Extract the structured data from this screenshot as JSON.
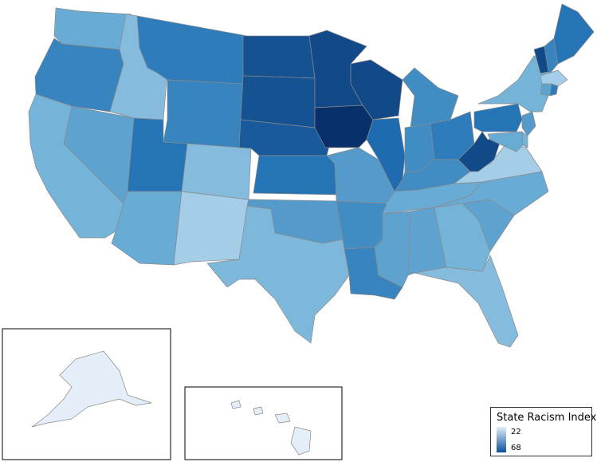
{
  "legend": {
    "title": "State Racism Index",
    "min_label": "22",
    "max_label": "68",
    "min": 22,
    "max": 68,
    "color_low": "#e3eef9",
    "color_high": "#08306b"
  },
  "background": "#ffffff",
  "state_values": {
    "WA": 38,
    "OR": 48,
    "CA": 36,
    "NV": 40,
    "ID": 34,
    "MT": 50,
    "WY": 48,
    "UT": 52,
    "AZ": 38,
    "CO": 34,
    "NM": 30,
    "ND": 60,
    "SD": 60,
    "NE": 58,
    "KS": 52,
    "OK": 42,
    "TX": 35,
    "MN": 62,
    "IA": 68,
    "MO": 42,
    "AR": 46,
    "LA": 48,
    "WI": 62,
    "IL": 54,
    "MI": 46,
    "IN": 46,
    "OH": 50,
    "KY": 46,
    "TN": 38,
    "MS": 40,
    "AL": 40,
    "GA": 36,
    "FL": 34,
    "SC": 40,
    "NC": 38,
    "VA": 30,
    "WV": 62,
    "PA": 52,
    "NY": 36,
    "VT": 62,
    "NH": 48,
    "ME": 52,
    "MA": 30,
    "CT": 40,
    "NJ": 42,
    "MD": 38,
    "DE": 36,
    "RI": 50,
    "AK": 22,
    "HI": 22
  }
}
